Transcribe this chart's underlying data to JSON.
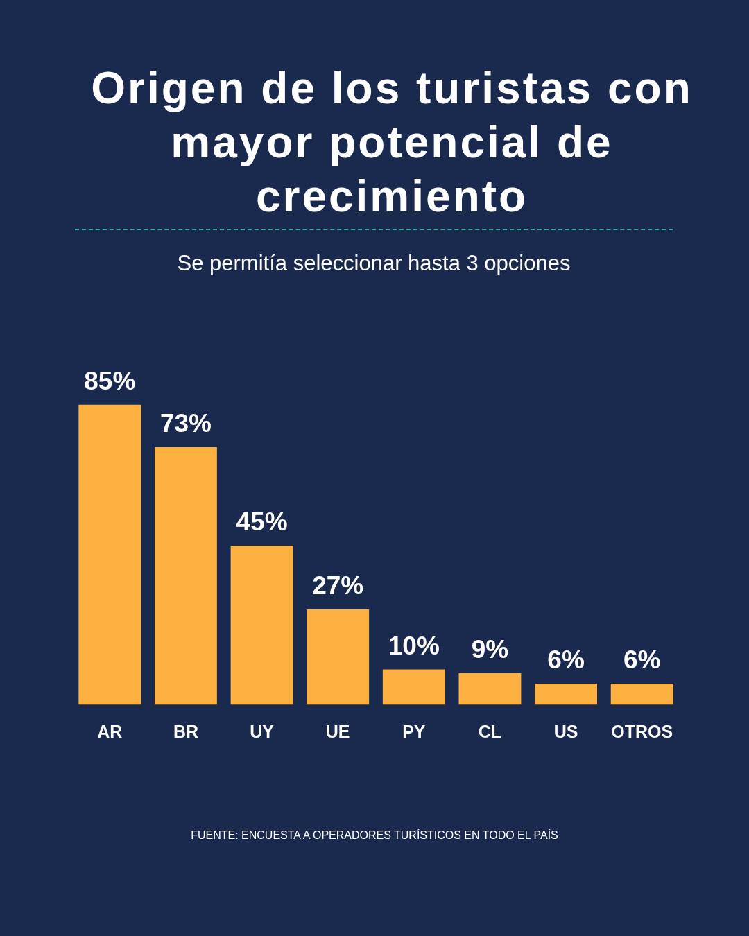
{
  "chart_data": {
    "type": "bar",
    "title": "Origen de los turistas con mayor potencial de crecimiento",
    "subtitle": "Se permitía seleccionar hasta 3 opciones",
    "categories": [
      "AR",
      "BR",
      "UY",
      "UE",
      "PY",
      "CL",
      "US",
      "OTROS"
    ],
    "values": [
      85,
      73,
      45,
      27,
      10,
      9,
      6,
      6
    ],
    "value_labels": [
      "85%",
      "73%",
      "45%",
      "27%",
      "10%",
      "9%",
      "6%",
      "6%"
    ],
    "color": "#fbb040",
    "grid": false,
    "annotations": [
      "FUENTE: ENCUESTA A OPERADORES TURÍSTICOS EN TODO EL PAÍS"
    ]
  }
}
